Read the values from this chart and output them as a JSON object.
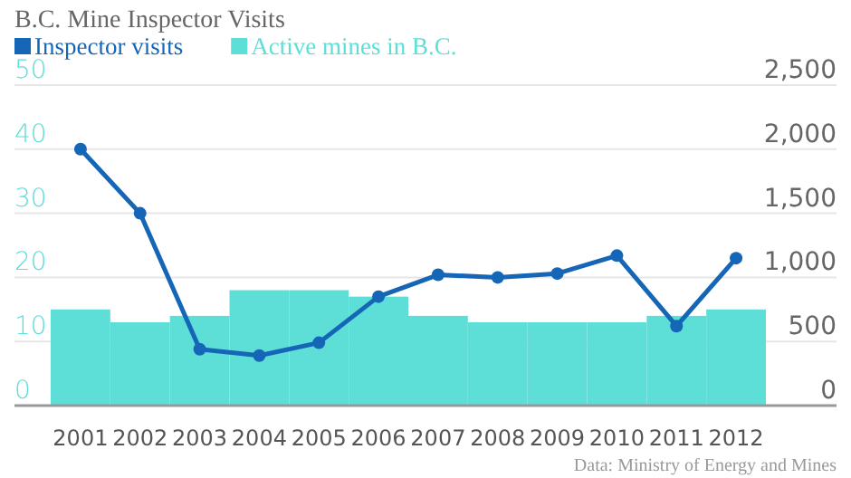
{
  "chart_data": {
    "type": "bar",
    "title": "B.C. Mine Inspector Visits",
    "categories": [
      "2001",
      "2002",
      "2003",
      "2004",
      "2005",
      "2006",
      "2007",
      "2008",
      "2009",
      "2010",
      "2011",
      "2012"
    ],
    "series": [
      {
        "name": "Inspector visits",
        "type": "line",
        "axis": "y2",
        "color": "#1566b7",
        "values": [
          2000,
          1500,
          440,
          390,
          490,
          850,
          1020,
          1000,
          1030,
          1170,
          620,
          1150
        ]
      },
      {
        "name": "Active mines in B.C.",
        "color": "#5ddfd8",
        "values": [
          15,
          13,
          14,
          18,
          18,
          17,
          14,
          13,
          13,
          13,
          14,
          15
        ]
      }
    ],
    "ylim": [
      0,
      50
    ],
    "yticks": [
      0,
      10,
      20,
      30,
      40,
      50
    ],
    "y2lim": [
      0,
      2500
    ],
    "y2ticks": [
      {
        "value": 0,
        "label": "0"
      },
      {
        "value": 500,
        "label": "500"
      },
      {
        "value": 1000,
        "label": "1,000"
      },
      {
        "value": 1500,
        "label": "1,500"
      },
      {
        "value": 2000,
        "label": "2,000"
      },
      {
        "value": 2500,
        "label": "2,500"
      }
    ],
    "grid": "y",
    "legend": "top left",
    "marker": "circle",
    "line_style": "solid",
    "annotations": [
      "Data: Ministry of Energy and Mines"
    ]
  }
}
